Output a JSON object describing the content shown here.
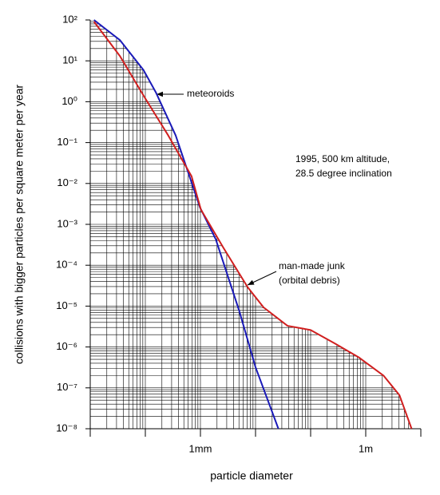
{
  "chart_data": {
    "type": "line",
    "x_label": "particle diameter",
    "y_label": "collisions with bigger particles per square meter per year",
    "xscale": "log",
    "yscale": "log",
    "grid": true,
    "xlim": [
      1e-05,
      10
    ],
    "ylim": [
      1e-08,
      100
    ],
    "xticks": [
      {
        "value": 0.001,
        "label": "1mm"
      },
      {
        "value": 1,
        "label": "1m"
      }
    ],
    "yticks": [
      {
        "value": 100,
        "label": "10²"
      },
      {
        "value": 10,
        "label": "10¹"
      },
      {
        "value": 1,
        "label": "10⁰"
      },
      {
        "value": 0.1,
        "label": "10⁻¹"
      },
      {
        "value": 0.01,
        "label": "10⁻²"
      },
      {
        "value": 0.001,
        "label": "10⁻³"
      },
      {
        "value": 0.0001,
        "label": "10⁻⁴"
      },
      {
        "value": 1e-05,
        "label": "10⁻⁵"
      },
      {
        "value": 1e-06,
        "label": "10⁻⁶"
      },
      {
        "value": 1e-07,
        "label": "10⁻⁷"
      },
      {
        "value": 1e-08,
        "label": "10⁻⁸"
      }
    ],
    "series": [
      {
        "color": "#1a1ab8",
        "x": [
          1.17e-05,
          3.47e-05,
          9.3e-05,
          0.000155,
          0.000355,
          0.00098,
          0.0019,
          0.0051,
          0.01,
          0.026
        ],
        "values": [
          100,
          32,
          5.9,
          1.7,
          0.15,
          0.0026,
          0.00043,
          7.4e-06,
          3.2e-07,
          1e-08
        ]
      },
      {
        "color": "#d01f1f",
        "x": [
          1.17e-05,
          3.47e-05,
          9.3e-05,
          0.00026,
          0.00069,
          0.00102,
          0.0026,
          0.0072,
          0.014,
          0.038,
          0.1,
          0.28,
          0.76,
          2.1,
          4.1,
          6.8
        ],
        "values": [
          91,
          13,
          1.4,
          0.15,
          0.015,
          0.0023,
          0.00027,
          2.9e-05,
          9.3e-06,
          3.3e-06,
          2.6e-06,
          1.2e-06,
          5.5e-07,
          2e-07,
          6.6e-08,
          1e-08
        ]
      }
    ],
    "annotations": [
      "meteoroids",
      "1995, 500 km altitude,",
      "28.5 degree inclination",
      "man-made junk",
      "(orbital debris)"
    ]
  }
}
